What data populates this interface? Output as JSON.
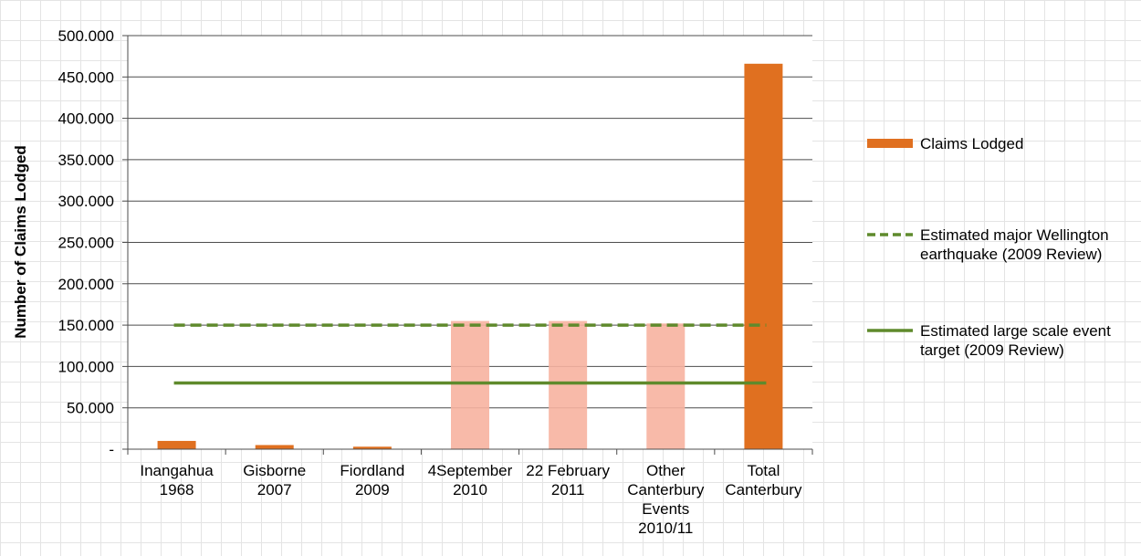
{
  "chart_data": {
    "type": "bar",
    "title": "",
    "xlabel": "",
    "ylabel": "Number of Claims Lodged",
    "ylim": [
      0,
      500000
    ],
    "yticks": [
      {
        "value": 0,
        "label": "-"
      },
      {
        "value": 50000,
        "label": "50.000"
      },
      {
        "value": 100000,
        "label": "100.000"
      },
      {
        "value": 150000,
        "label": "150.000"
      },
      {
        "value": 200000,
        "label": "200.000"
      },
      {
        "value": 250000,
        "label": "250.000"
      },
      {
        "value": 300000,
        "label": "300.000"
      },
      {
        "value": 350000,
        "label": "350.000"
      },
      {
        "value": 400000,
        "label": "400.000"
      },
      {
        "value": 450000,
        "label": "450.000"
      },
      {
        "value": 500000,
        "label": "500.000"
      }
    ],
    "categories": [
      [
        "Inangahua",
        "1968"
      ],
      [
        "Gisborne",
        "2007"
      ],
      [
        "Fiordland",
        "2009"
      ],
      [
        "4September",
        "2010"
      ],
      [
        "22 February",
        "2011"
      ],
      [
        "Other",
        "Canterbury",
        "Events",
        "2010/11"
      ],
      [
        "Total",
        "Canterbury"
      ]
    ],
    "grid": true,
    "legend_position": "right",
    "series": [
      {
        "name": "Claims Lodged",
        "kind": "bar",
        "color": "#e07020",
        "values": [
          10000,
          5000,
          3000,
          155000,
          155000,
          152000,
          466000
        ],
        "highlight": [
          false,
          false,
          false,
          true,
          true,
          true,
          false
        ],
        "highlight_color": "#f7b2a0"
      },
      {
        "name": "Estimated major Wellington earthquake (2009 Review)",
        "legend_lines": [
          "Estimated major Wellington",
          "earthquake (2009 Review)"
        ],
        "kind": "line",
        "style": "dashed",
        "color": "#5f8a2c",
        "value": 150000
      },
      {
        "name": "Estimated large scale event target (2009 Review)",
        "legend_lines": [
          "Estimated large scale event",
          "target (2009 Review)"
        ],
        "kind": "line",
        "style": "solid",
        "color": "#5f8a2c",
        "value": 80000
      }
    ]
  }
}
